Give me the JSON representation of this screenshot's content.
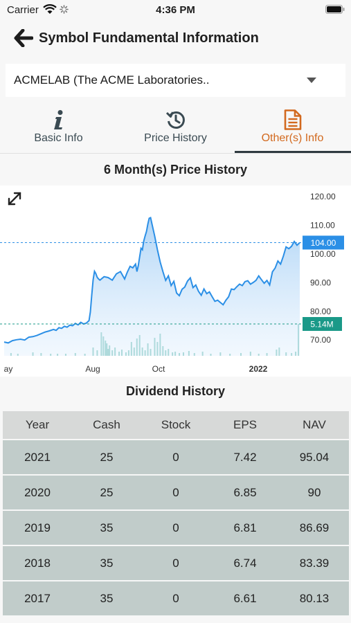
{
  "status_bar": {
    "carrier": "Carrier",
    "time": "4:36 PM"
  },
  "header": {
    "title": "Symbol Fundamental Information"
  },
  "symbol_select": {
    "value": "ACMELAB (The ACME Laboratories.."
  },
  "tabs": [
    {
      "label": "Basic Info",
      "icon": "info-icon",
      "active": false
    },
    {
      "label": "Price History",
      "icon": "history-icon",
      "active": false
    },
    {
      "label": "Other(s) Info",
      "icon": "document-icon",
      "active": true
    }
  ],
  "price_section": {
    "title": "6 Month(s) Price History"
  },
  "chart_data": {
    "type": "area",
    "x_tick_labels": [
      "ay",
      "Aug",
      "Oct",
      "2022"
    ],
    "y_tick_labels": [
      "120.00",
      "110.00",
      "100.00",
      "90.00",
      "80.00",
      "70.00"
    ],
    "ylim": [
      64.5,
      121.5
    ],
    "last_price_label": "104.00",
    "last_volume_label": "5.14M",
    "x": [
      0,
      6,
      12,
      18,
      24,
      30,
      36,
      42,
      48,
      54,
      60,
      66,
      72,
      76,
      80,
      84,
      88,
      92,
      96,
      100,
      104,
      108,
      112,
      116,
      120,
      124,
      126,
      128,
      130,
      132,
      134,
      136,
      138,
      140,
      146,
      152,
      158,
      164,
      170,
      176,
      180,
      184,
      188,
      192,
      194,
      196,
      198,
      200,
      202,
      204,
      206,
      208,
      210,
      212,
      214,
      216,
      220,
      224,
      228,
      232,
      236,
      240,
      244,
      248,
      252,
      256,
      260,
      264,
      268,
      272,
      276,
      280,
      284,
      288,
      292,
      296,
      300,
      304,
      308,
      312,
      316,
      320,
      324,
      328,
      332,
      336,
      340,
      344,
      348,
      352,
      356,
      360,
      364,
      368,
      372,
      376,
      380,
      384,
      388,
      392,
      396,
      400,
      404,
      408,
      412,
      416,
      420,
      424,
      428,
      432
    ],
    "close": [
      69.3,
      69.0,
      69.8,
      70.1,
      70.3,
      70.0,
      71.0,
      71.2,
      71.6,
      72.2,
      72.8,
      73.2,
      73.7,
      73.4,
      74.3,
      74.1,
      74.8,
      74.5,
      75.2,
      75.0,
      75.8,
      75.3,
      76.2,
      75.6,
      75.9,
      76.8,
      79.8,
      85.6,
      91.0,
      94.0,
      93.2,
      91.9,
      91.3,
      90.9,
      92.1,
      91.8,
      90.9,
      93.1,
      93.9,
      91.3,
      93.7,
      95.7,
      95.2,
      96.5,
      93.9,
      95.9,
      99.0,
      102.0,
      101.5,
      104.5,
      106.3,
      107.9,
      110.5,
      112.5,
      112.7,
      110.5,
      106.2,
      101.5,
      97.2,
      93.9,
      90.8,
      92.4,
      89.0,
      90.5,
      86.4,
      85.5,
      87.7,
      88.5,
      90.6,
      91.7,
      88.3,
      89.2,
      87.0,
      85.6,
      87.8,
      86.2,
      86.8,
      85.1,
      83.5,
      83.9,
      83.1,
      82.3,
      83.9,
      85.1,
      87.8,
      87.6,
      88.6,
      89.5,
      89.0,
      90.4,
      90.7,
      89.5,
      90.1,
      90.8,
      92.4,
      91.1,
      89.8,
      90.8,
      89.2,
      93.8,
      95.1,
      97.6,
      96.5,
      99.3,
      102.5,
      101.9,
      102.7,
      104.4,
      103.1,
      104.0
    ],
    "volume_bars_x": [
      10,
      20,
      42,
      54,
      68,
      78,
      90,
      104,
      118,
      130,
      136,
      142,
      145,
      148,
      150,
      152,
      154,
      158,
      162,
      168,
      172,
      178,
      182,
      186,
      190,
      194,
      198,
      202,
      206,
      210,
      214,
      220,
      224,
      228,
      232,
      236,
      240,
      246,
      250,
      256,
      262,
      270,
      278,
      290,
      302,
      316,
      330,
      346,
      360,
      372,
      384,
      398,
      402,
      412,
      420,
      426,
      430
    ],
    "volume_bars_h": [
      4,
      3,
      5,
      4,
      3,
      3,
      3,
      4,
      3,
      12,
      8,
      34,
      28,
      22,
      18,
      10,
      15,
      8,
      12,
      6,
      9,
      5,
      8,
      20,
      12,
      25,
      30,
      12,
      8,
      18,
      10,
      26,
      20,
      32,
      14,
      8,
      10,
      5,
      6,
      4,
      5,
      7,
      4,
      6,
      3,
      5,
      3,
      4,
      6,
      3,
      4,
      9,
      12,
      5,
      4,
      6,
      46
    ]
  },
  "dividend_section": {
    "title": "Dividend History"
  },
  "dividend_table": {
    "headers": [
      "Year",
      "Cash",
      "Stock",
      "EPS",
      "NAV"
    ],
    "rows": [
      [
        "2021",
        "25",
        "0",
        "7.42",
        "95.04"
      ],
      [
        "2020",
        "25",
        "0",
        "6.85",
        "90"
      ],
      [
        "2019",
        "35",
        "0",
        "6.81",
        "86.69"
      ],
      [
        "2018",
        "35",
        "0",
        "6.74",
        "83.39"
      ],
      [
        "2017",
        "35",
        "0",
        "6.61",
        "80.13"
      ]
    ]
  },
  "colors": {
    "accent": "#d2691e",
    "price_line": "#2b8fe6",
    "volume": "#1a9988",
    "row_bg": "#c1ccca",
    "header_bg": "#d7d9d8"
  }
}
